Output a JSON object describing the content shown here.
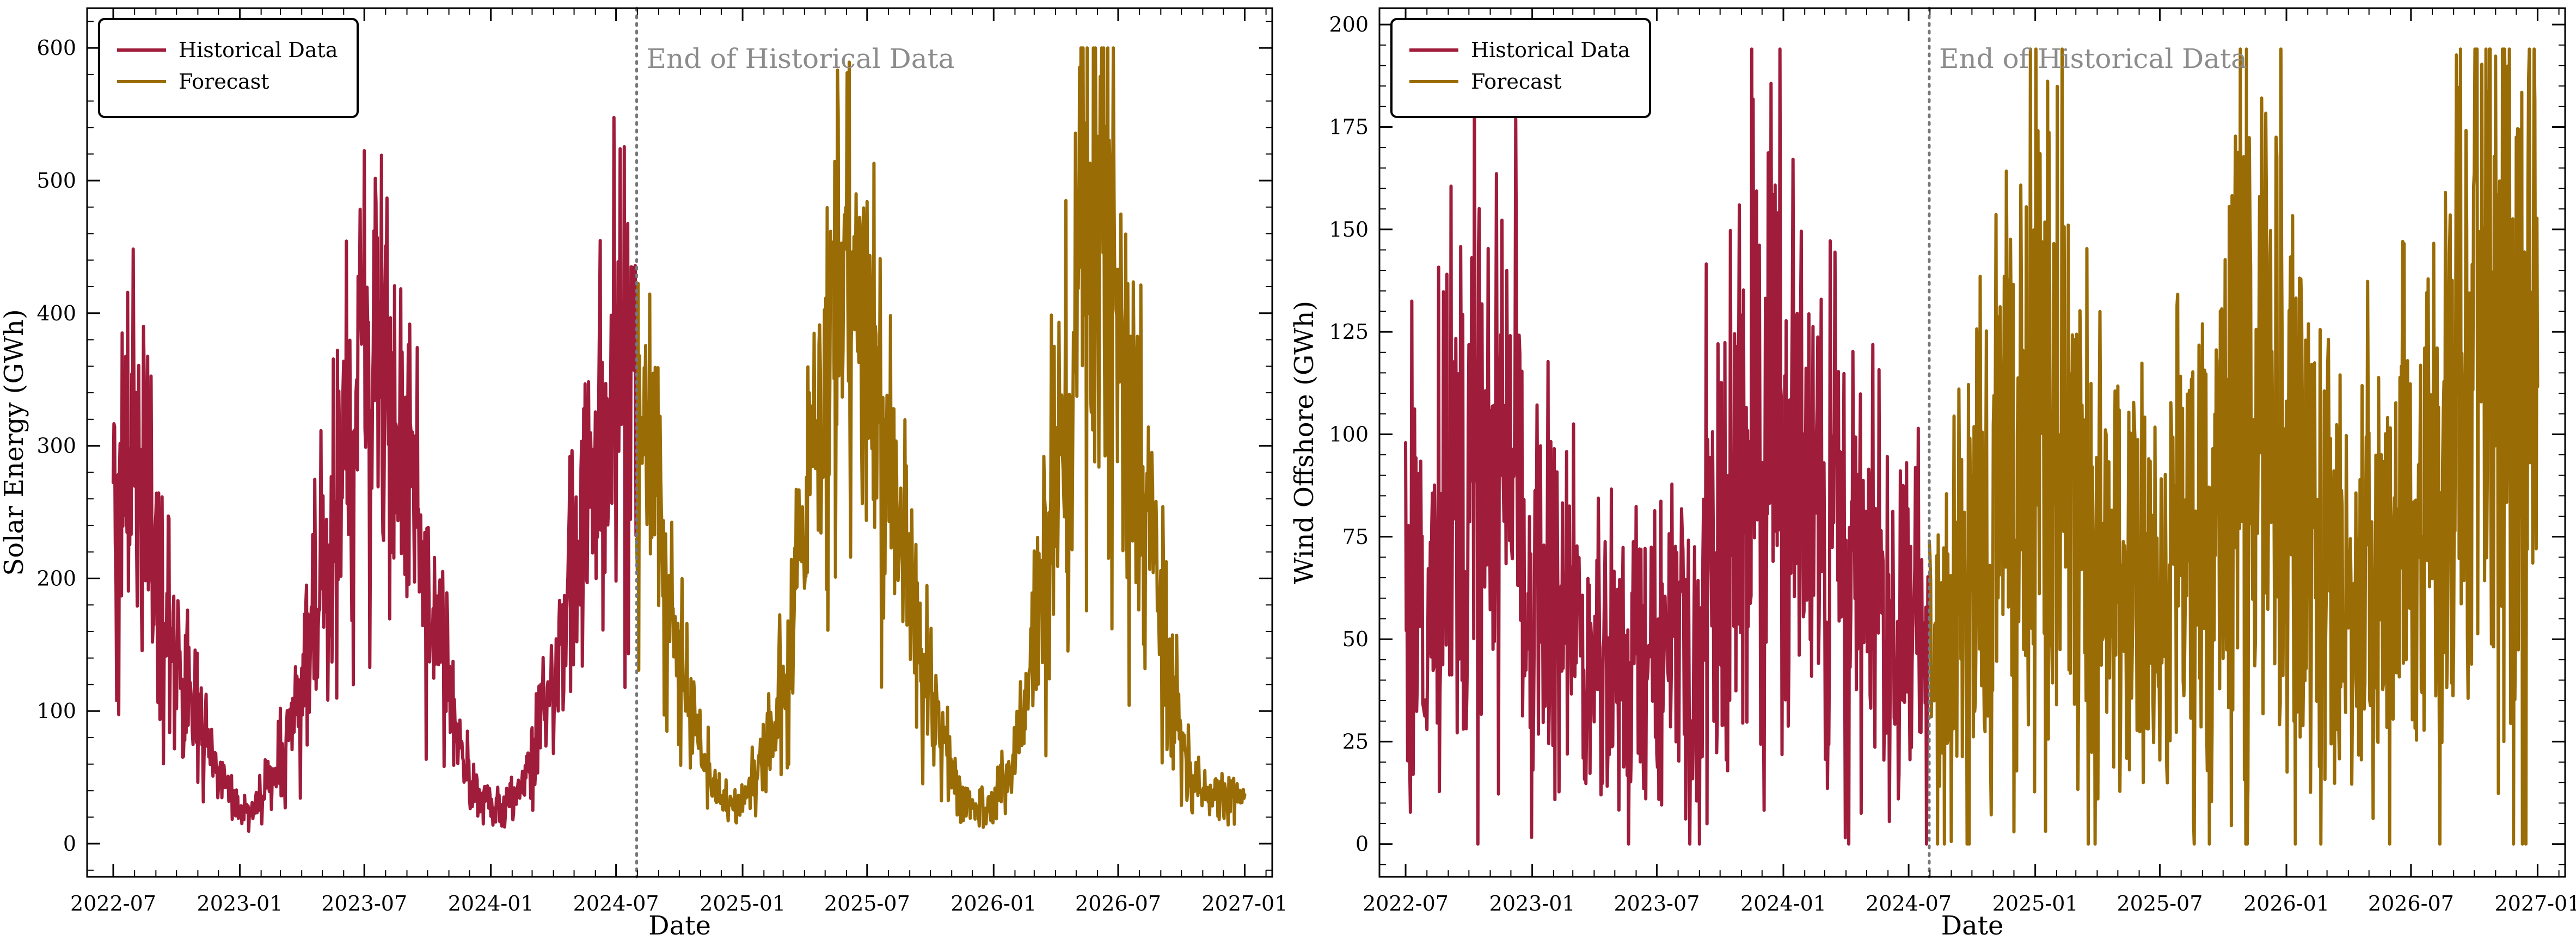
{
  "colors": {
    "historical": "#A01C3B",
    "forecast": "#9A6C05",
    "annotation": "#8c8c8c"
  },
  "chart_data": [
    {
      "type": "line",
      "title": "",
      "xlabel": "Date",
      "ylabel": "Solar Energy (GWh)",
      "xlim": [
        "2022-05-24",
        "2027-02-10"
      ],
      "ylim": [
        -25,
        630
      ],
      "x_ticks": [
        "2022-07",
        "2023-01",
        "2023-07",
        "2024-01",
        "2024-07",
        "2025-01",
        "2025-07",
        "2026-01",
        "2026-07",
        "2027-01"
      ],
      "y_ticks": [
        0,
        100,
        200,
        300,
        400,
        500,
        600
      ],
      "grid": false,
      "legend": {
        "position": "top-left",
        "entries": [
          "Historical Data",
          "Forecast"
        ]
      },
      "annotation": {
        "text": "End of Historical Data",
        "x": "2024-07-31"
      },
      "series": [
        {
          "name": "Historical Data",
          "color": "#A01C3B",
          "x_start": "2022-07-01",
          "x_end": "2024-07-31",
          "sample_step_days": 14,
          "approx_values": [
            290,
            250,
            300,
            260,
            230,
            185,
            160,
            130,
            110,
            90,
            70,
            55,
            40,
            30,
            25,
            30,
            45,
            60,
            80,
            100,
            130,
            170,
            200,
            240,
            280,
            320,
            360,
            375,
            350,
            320,
            300,
            270,
            230,
            190,
            150,
            110,
            75,
            50,
            35,
            30,
            25,
            30,
            40,
            60,
            80,
            100,
            130,
            170,
            210,
            250,
            290,
            320,
            350,
            340
          ]
        },
        {
          "name": "Forecast",
          "color": "#9A6C05",
          "x_start": "2024-07-31",
          "x_end": "2027-01-01",
          "sample_step_days": 14,
          "approx_values": [
            340,
            300,
            250,
            200,
            160,
            120,
            90,
            65,
            45,
            35,
            30,
            35,
            45,
            60,
            80,
            110,
            150,
            200,
            260,
            320,
            380,
            410,
            420,
            400,
            370,
            330,
            290,
            250,
            210,
            170,
            130,
            100,
            70,
            50,
            35,
            30,
            30,
            35,
            45,
            60,
            90,
            130,
            180,
            240,
            310,
            380,
            440,
            480,
            470,
            440,
            400,
            350,
            300,
            250,
            200,
            150,
            110,
            75,
            50,
            40
          ]
        }
      ]
    },
    {
      "type": "line",
      "title": "",
      "xlabel": "Date",
      "ylabel": "Wind Offshore (GWh)",
      "xlim": [
        "2022-05-24",
        "2027-02-10"
      ],
      "ylim": [
        -8,
        204
      ],
      "x_ticks": [
        "2022-07",
        "2023-01",
        "2023-07",
        "2024-01",
        "2024-07",
        "2025-01",
        "2025-07",
        "2026-01",
        "2026-07",
        "2027-01"
      ],
      "y_ticks": [
        0,
        25,
        50,
        75,
        100,
        125,
        150,
        175,
        200
      ],
      "grid": false,
      "legend": {
        "position": "top-left",
        "entries": [
          "Historical Data",
          "Forecast"
        ]
      },
      "annotation": {
        "text": "End of Historical Data",
        "x": "2024-07-31"
      },
      "series": [
        {
          "name": "Historical Data",
          "color": "#A01C3B",
          "x_start": "2022-07-01",
          "x_end": "2024-07-31",
          "sample_step_days": 14,
          "approx_values": [
            60,
            55,
            50,
            60,
            70,
            80,
            85,
            90,
            90,
            85,
            80,
            80,
            75,
            70,
            65,
            60,
            55,
            50,
            50,
            45,
            45,
            45,
            45,
            45,
            50,
            50,
            55,
            55,
            55,
            55,
            60,
            65,
            70,
            80,
            90,
            100,
            100,
            100,
            95,
            90,
            85,
            85,
            85,
            80,
            80,
            75,
            70,
            65,
            60,
            60,
            55,
            50,
            45,
            45
          ]
        },
        {
          "name": "Forecast",
          "color": "#9A6C05",
          "x_start": "2024-07-31",
          "x_end": "2027-01-01",
          "sample_step_days": 14,
          "approx_values": [
            45,
            50,
            55,
            60,
            65,
            70,
            75,
            80,
            90,
            100,
            105,
            105,
            100,
            95,
            90,
            85,
            80,
            75,
            70,
            65,
            60,
            60,
            60,
            60,
            60,
            65,
            65,
            70,
            75,
            80,
            90,
            100,
            110,
            110,
            105,
            100,
            95,
            90,
            85,
            80,
            75,
            70,
            65,
            60,
            60,
            60,
            65,
            65,
            70,
            75,
            80,
            85,
            90,
            95,
            100,
            105,
            110,
            115,
            120,
            125
          ]
        }
      ]
    }
  ]
}
